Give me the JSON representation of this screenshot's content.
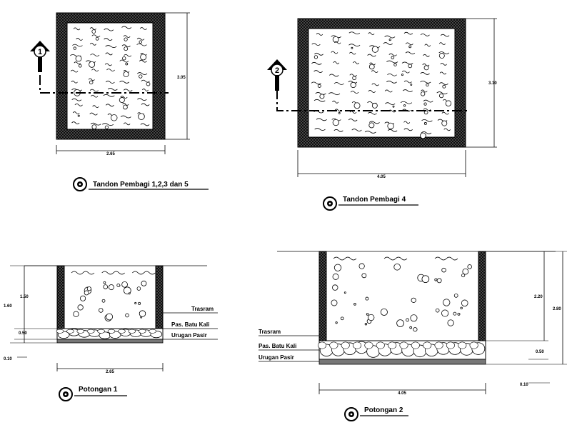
{
  "plans": [
    {
      "marker": "1",
      "width_dim": "2.65",
      "height_dim": "3.05",
      "title": "Tandon Pembagi 1,2,3 dan 5"
    },
    {
      "marker": "2",
      "width_dim": "4.05",
      "height_dim": "3.10",
      "title": "Tandon Pembagi 4"
    }
  ],
  "sections": [
    {
      "title": "Potongan 1",
      "width_dim": "2.65",
      "left_dims": [
        "1.50",
        "1.60"
      ],
      "gravel_dim": "0.50",
      "sand_dim": "0.10",
      "labels": {
        "wall": "Trasram",
        "gravel": "Pas. Batu Kali",
        "sand": "Urugan Pasir"
      }
    },
    {
      "title": "Potongan 2",
      "width_dim": "4.05",
      "right_dims": [
        "2.20",
        "2.80"
      ],
      "gravel_dim": "0.50",
      "sand_dim": "0.10",
      "labels": {
        "wall": "Trasram",
        "gravel": "Pas. Batu Kali",
        "sand": "Urugan Pasir"
      }
    }
  ]
}
